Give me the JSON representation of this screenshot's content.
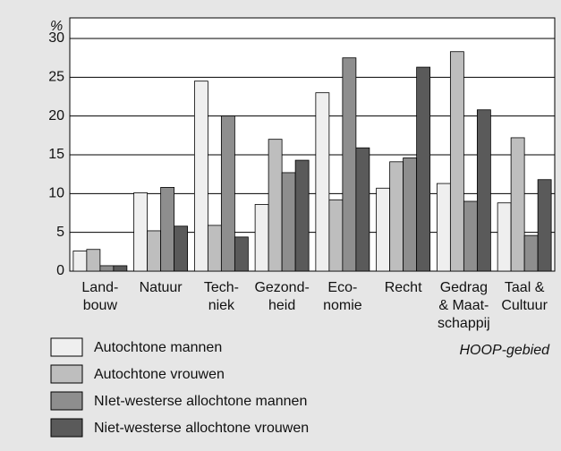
{
  "chart_data": {
    "type": "bar",
    "unit_label": "%",
    "annotation": "HOOP-gebied",
    "categories": [
      [
        "Land-",
        "bouw"
      ],
      [
        "Natuur"
      ],
      [
        "Tech-",
        "niek"
      ],
      [
        "Gezond-",
        "heid"
      ],
      [
        "Eco-",
        "nomie"
      ],
      [
        "Recht"
      ],
      [
        "Gedrag",
        "& Maat-",
        "schappij"
      ],
      [
        "Taal &",
        "Cultuur"
      ]
    ],
    "series": [
      {
        "name": "Autochtone mannen",
        "color": "#efefef",
        "values": [
          2.6,
          10.1,
          24.5,
          8.6,
          23.0,
          10.7,
          11.3,
          8.8
        ]
      },
      {
        "name": "Autochtone vrouwen",
        "color": "#bebebe",
        "values": [
          2.8,
          5.2,
          5.9,
          17.0,
          9.2,
          14.1,
          28.3,
          17.2
        ]
      },
      {
        "name": "NIet-westerse allochtone mannen",
        "color": "#8e8e8e",
        "values": [
          0.7,
          10.8,
          20.0,
          12.7,
          27.5,
          14.6,
          9.0,
          4.6
        ]
      },
      {
        "name": "Niet-westerse allochtone vrouwen",
        "color": "#5a5a5a",
        "values": [
          0.7,
          5.8,
          4.4,
          14.3,
          15.9,
          26.3,
          20.8,
          11.8
        ]
      }
    ],
    "ylim": [
      0,
      30
    ],
    "yticks": [
      0,
      5,
      10,
      15,
      20,
      25,
      30
    ],
    "grid": true
  }
}
